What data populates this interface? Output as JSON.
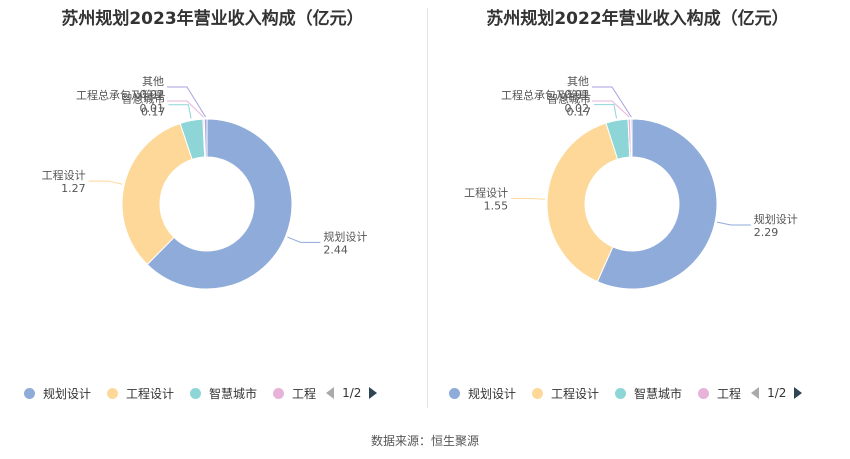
{
  "source_label": "数据来源：恒生聚源",
  "colors": [
    "#8eabd9",
    "#fed899",
    "#8ed5d7",
    "#e8b3d8",
    "#a9a1e0"
  ],
  "chart_data": [
    {
      "type": "pie",
      "title": "苏州规划2023年营业收入构成（亿元）",
      "slices": [
        {
          "label": "规划设计",
          "value": 2.44
        },
        {
          "label": "工程设计",
          "value": 1.27
        },
        {
          "label": "智慧城市",
          "value": 0.17
        },
        {
          "label": "工程总承包及管理",
          "value": 0.01
        },
        {
          "label": "其他",
          "value": 0.02
        }
      ],
      "legend": {
        "items": [
          "规划设计",
          "工程设计",
          "智慧城市",
          "工程"
        ],
        "page": "1/2"
      }
    },
    {
      "type": "pie",
      "title": "苏州规划2022年营业收入构成（亿元）",
      "slices": [
        {
          "label": "规划设计",
          "value": 2.29
        },
        {
          "label": "工程设计",
          "value": 1.55
        },
        {
          "label": "智慧城市",
          "value": 0.17
        },
        {
          "label": "工程总承包及管理",
          "value": 0.02
        },
        {
          "label": "其他",
          "value": 0.01
        }
      ],
      "legend": {
        "items": [
          "规划设计",
          "工程设计",
          "智慧城市",
          "工程"
        ],
        "page": "1/2"
      }
    }
  ]
}
